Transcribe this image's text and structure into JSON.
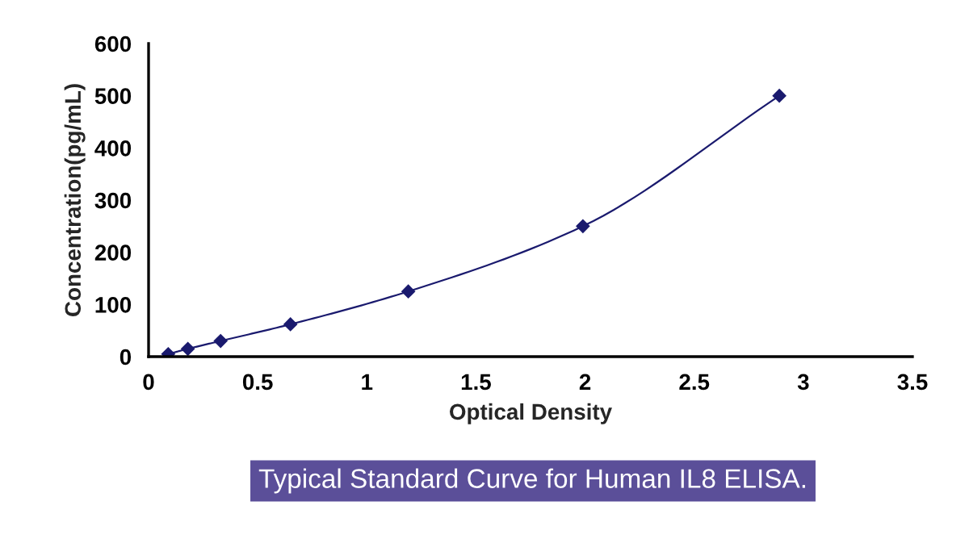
{
  "chart_data": {
    "type": "line",
    "xlabel": "Optical Density",
    "ylabel": "Concentration(pg/mL)",
    "series": [
      {
        "color": "#1a1a6e",
        "x": [
          0.09,
          0.18,
          0.33,
          0.65,
          1.19,
          1.99,
          2.89
        ],
        "values": [
          5,
          15,
          30,
          62,
          125,
          250,
          500
        ]
      }
    ],
    "marker": "diamond",
    "line_style": "solid",
    "xlim": [
      0,
      3.5
    ],
    "xticks": [
      0,
      0.5,
      1,
      1.5,
      2,
      2.5,
      3,
      3.5
    ],
    "ylim": [
      0,
      600
    ],
    "yticks": [
      0,
      100,
      200,
      300,
      400,
      500,
      600
    ],
    "grid": false,
    "legend": false,
    "annotations": [
      "Typical Standard Curve for Human IL8 ELISA."
    ]
  }
}
